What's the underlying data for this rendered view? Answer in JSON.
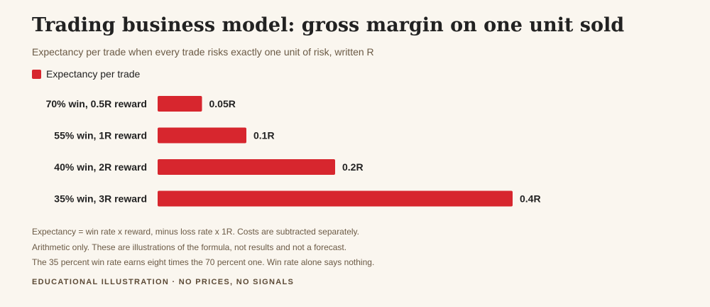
{
  "title": "Trading business model: gross margin on one unit sold",
  "subtitle": "Expectancy per trade when every trade risks exactly one unit of risk, written R",
  "legend": {
    "label": "Expectancy per trade",
    "color": "#d7262e"
  },
  "chart_data": {
    "type": "bar",
    "orientation": "horizontal",
    "categories": [
      "70% win, 0.5R reward",
      "55% win, 1R reward",
      "40% win, 2R reward",
      "35% win, 3R reward"
    ],
    "series": [
      {
        "name": "Expectancy per trade",
        "values": [
          0.05,
          0.1,
          0.2,
          0.4
        ],
        "labels": [
          "0.05R",
          "0.1R",
          "0.2R",
          "0.4R"
        ],
        "color": "#d7262e"
      }
    ],
    "xlim": [
      0,
      0.4
    ],
    "grid": false,
    "legend_position": "top-left",
    "title": "Trading business model: gross margin on one unit sold",
    "subtitle": "Expectancy per trade when every trade risks exactly one unit of risk, written R",
    "xlabel": "",
    "ylabel": ""
  },
  "notes": [
    "Expectancy = win rate x reward, minus loss rate x 1R. Costs are subtracted separately.",
    "Arithmetic only. These are illustrations of the formula, not results and not a forecast.",
    "The 35 percent win rate earns eight times the 70 percent one. Win rate alone says nothing."
  ],
  "footer": "EDUCATIONAL ILLUSTRATION · NO PRICES, NO SIGNALS"
}
